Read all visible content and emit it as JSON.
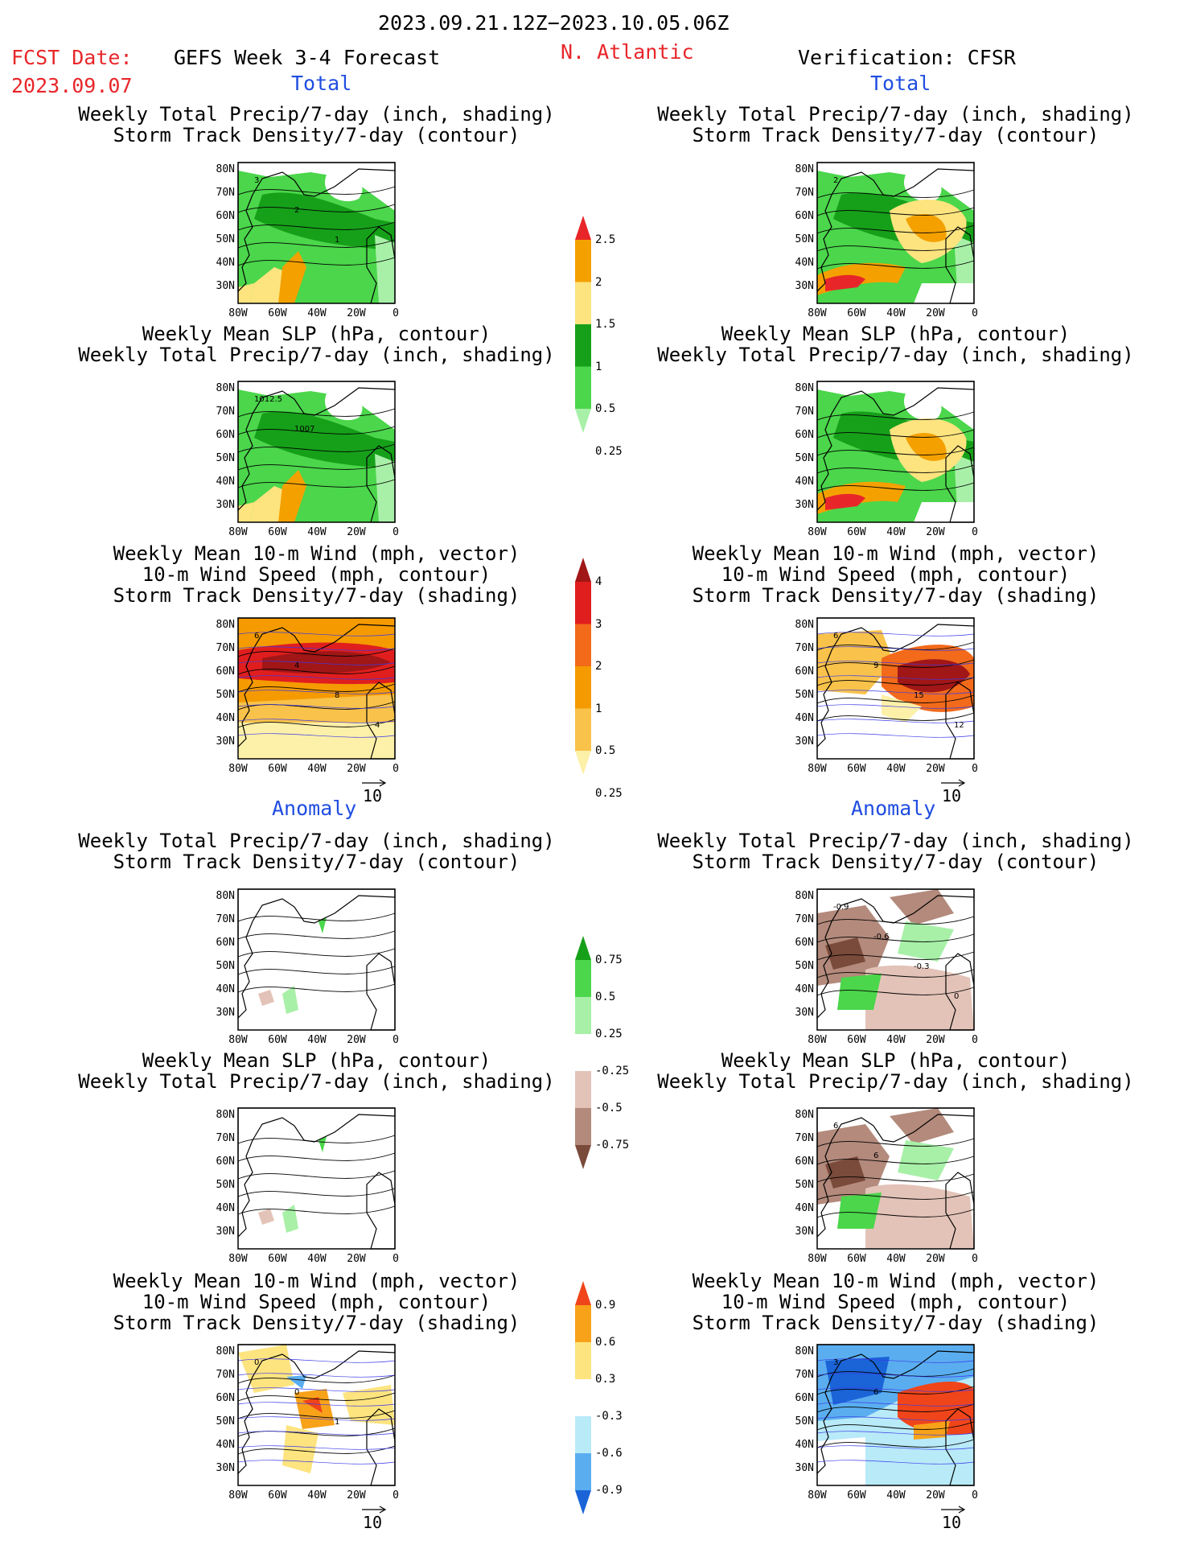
{
  "header": {
    "period": "2023.09.21.12Z−2023.10.05.06Z",
    "fcst_label": "FCST Date:",
    "fcst_date": "2023.09.07",
    "model": "GEFS Week 3-4 Forecast",
    "region": "N. Atlantic",
    "verification": "Verification: CFSR"
  },
  "sections": {
    "total": "Total",
    "anomaly": "Anomaly"
  },
  "axes": {
    "lat": [
      "80N",
      "70N",
      "60N",
      "50N",
      "40N",
      "30N"
    ],
    "lon": [
      "80W",
      "60W",
      "40W",
      "20W",
      "0"
    ]
  },
  "vector_ref": "10",
  "panels": {
    "total": [
      {
        "line1": "Weekly Total Precip/7-day (inch, shading)",
        "line2": "Storm Track Density/7-day (contour)",
        "line3": ""
      },
      {
        "line1": "Weekly Mean SLP (hPa, contour)",
        "line2": "Weekly Total Precip/7-day (inch, shading)",
        "line3": ""
      },
      {
        "line1": "Weekly Mean 10-m Wind (mph, vector)",
        "line2": "10-m Wind Speed (mph, contour)",
        "line3": "Storm Track Density/7-day (shading)"
      }
    ],
    "anomaly": [
      {
        "line1": "Weekly Total Precip/7-day (inch, shading)",
        "line2": "Storm Track Density/7-day (contour)",
        "line3": ""
      },
      {
        "line1": "Weekly Mean SLP (hPa, contour)",
        "line2": "Weekly Total Precip/7-day (inch, shading)",
        "line3": ""
      },
      {
        "line1": "Weekly Mean 10-m Wind (mph, vector)",
        "line2": "10-m Wind Speed (mph, contour)",
        "line3": "Storm Track Density/7-day (shading)"
      }
    ]
  },
  "contour_labels": {
    "fc_track": [
      "3",
      "2",
      "1"
    ],
    "vf_track": [
      "2"
    ],
    "fc_slp": [
      "1012.5",
      "1007"
    ],
    "fc_wind": [
      "6",
      "4",
      "8",
      "4"
    ],
    "vf_wind": [
      "6",
      "9",
      "15",
      "12"
    ],
    "vf_precip_anom": [
      "-0.9",
      "-0.6",
      "-0.3",
      "0"
    ],
    "fc_wind_anom": [
      "0",
      "0",
      "1"
    ],
    "vf_wind_anom": [
      "3",
      "6"
    ],
    "vf_slp_anom": [
      "6",
      "6"
    ]
  },
  "colorbars": {
    "precip": {
      "labels": [
        "2.5",
        "2",
        "1.5",
        "1",
        "0.5",
        "0.25"
      ],
      "colors": [
        "#e8262a",
        "#f4a100",
        "#fde47f",
        "#16a01a",
        "#4bd64b",
        "#a8f0a8"
      ]
    },
    "track": {
      "labels": [
        "4",
        "3",
        "2",
        "1",
        "0.5",
        "0.25"
      ],
      "colors": [
        "#a11616",
        "#e01e1e",
        "#f26a1a",
        "#f59a00",
        "#f9c24a",
        "#fdf0a8"
      ]
    },
    "precip_anom": {
      "labels": [
        "0.75",
        "0.5",
        "0.25",
        "-0.25",
        "-0.5",
        "-0.75"
      ],
      "colors": [
        "#16a01a",
        "#4bd64b",
        "#a8f0a8",
        "#ffffff",
        "#e3c3b8",
        "#b38a7c",
        "#7a4a3a"
      ]
    },
    "track_anom": {
      "labels": [
        "0.9",
        "0.6",
        "0.3",
        "-0.3",
        "-0.6",
        "-0.9"
      ],
      "colors": [
        "#f0451a",
        "#f8a21a",
        "#fde47f",
        "#ffffff",
        "#b8eaf8",
        "#5aaef0",
        "#1a64d8"
      ]
    }
  },
  "colors": {
    "precip_light": "#a8f0a8",
    "precip_mid": "#4bd64b",
    "precip_dark": "#16a01a",
    "precip_yellow": "#fde47f",
    "precip_orange": "#f4a100",
    "precip_red": "#e8262a"
  }
}
